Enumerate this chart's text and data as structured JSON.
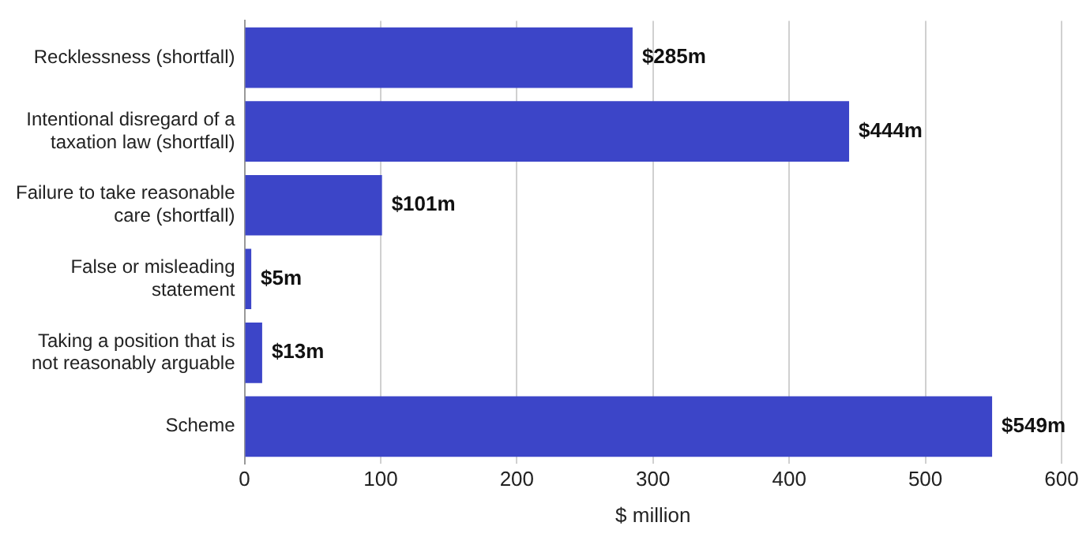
{
  "chart_data": {
    "type": "bar",
    "orientation": "horizontal",
    "categories": [
      "Recklessness (shortfall)",
      "Intentional disregard of a taxation law (shortfall)",
      "Failure to take reasonable care (shortfall)",
      "False or misleading statement",
      "Taking a position that is not reasonably arguable",
      "Scheme"
    ],
    "values": [
      285,
      444,
      101,
      5,
      13,
      549
    ],
    "value_labels": [
      "$285m",
      "$444m",
      "$101m",
      "$5m",
      "$13m",
      "$549m"
    ],
    "color": "#3c45c8",
    "xlabel": "$ million",
    "xlim": [
      0,
      600
    ],
    "xticks": [
      0,
      100,
      200,
      300,
      400,
      500,
      600
    ],
    "grid": "x",
    "legend": false
  }
}
